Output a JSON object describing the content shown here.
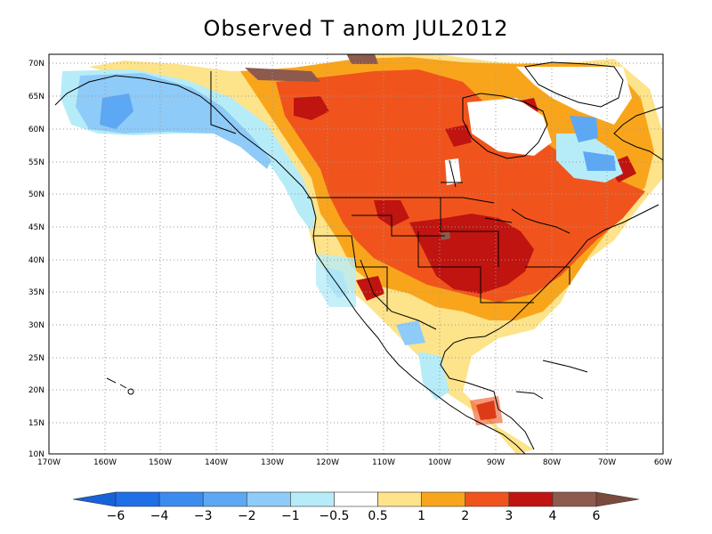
{
  "title": "Observed T anom JUL2012",
  "lat_labels": [
    "70N",
    "65N",
    "60N",
    "55N",
    "50N",
    "45N",
    "40N",
    "35N",
    "30N",
    "25N",
    "20N",
    "15N",
    "10N"
  ],
  "lon_labels": [
    "170W",
    "160W",
    "150W",
    "140W",
    "130W",
    "120W",
    "110W",
    "100W",
    "90W",
    "80W",
    "70W",
    "60W"
  ],
  "colorbar": {
    "bins": [
      {
        "color": "#1e6fe8"
      },
      {
        "color": "#3c8cf0"
      },
      {
        "color": "#5ca8f5"
      },
      {
        "color": "#8ecbf8"
      },
      {
        "color": "#b6ecf8"
      },
      {
        "color": "#ffffff"
      },
      {
        "color": "#fde38a"
      },
      {
        "color": "#f9a51c"
      },
      {
        "color": "#f0541c"
      },
      {
        "color": "#c01410"
      },
      {
        "color": "#8e5a4e"
      }
    ],
    "low_arrow_color": "#1762d8",
    "high_arrow_color": "#7a4a3c",
    "labels": [
      "−6",
      "−4",
      "−3",
      "−2",
      "−1",
      "−0.5",
      "0.5",
      "1",
      "2",
      "3",
      "4",
      "6"
    ]
  }
}
